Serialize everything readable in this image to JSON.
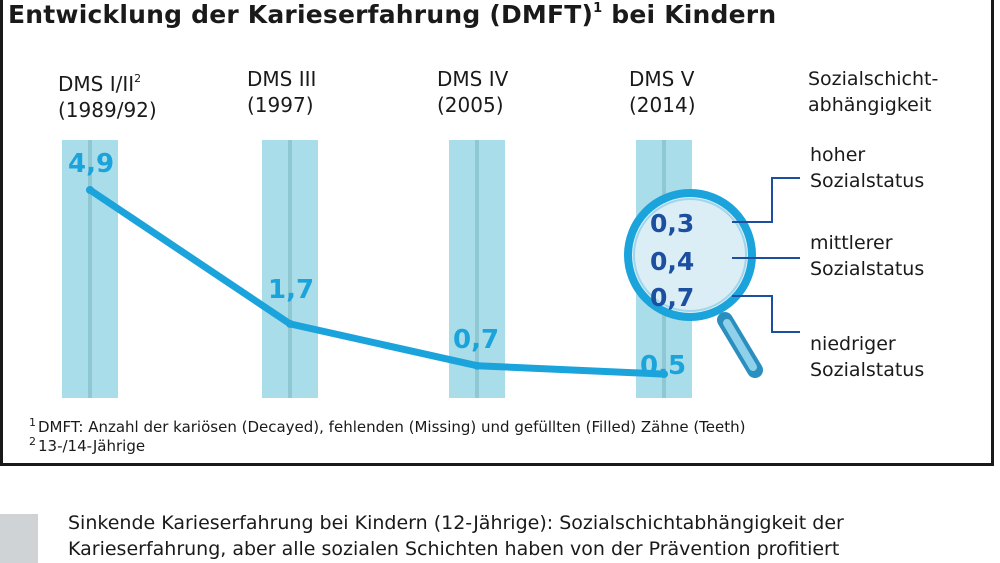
{
  "title": {
    "text": "Entwicklung der Karieserfahrung (DMFT)",
    "sup": "1",
    "tail": " bei Kindern"
  },
  "chart_data": {
    "type": "line",
    "title": "Entwicklung der Karieserfahrung (DMFT) bei Kindern",
    "categories": [
      {
        "name": "DMS I/II",
        "sup": "2",
        "year": "(1989/92)"
      },
      {
        "name": "DMS III",
        "sup": "",
        "year": "(1997)"
      },
      {
        "name": "DMS IV",
        "sup": "",
        "year": "(2005)"
      },
      {
        "name": "DMS V",
        "sup": "",
        "year": "(2014)"
      }
    ],
    "values": [
      4.9,
      1.7,
      0.7,
      0.5
    ],
    "value_labels": [
      "4,9",
      "1,7",
      "0,7",
      "0,5"
    ],
    "ylim": [
      0,
      5.5
    ],
    "grid": false,
    "breakdown": {
      "heading": [
        "Sozialschicht-",
        "abhängigkeit"
      ],
      "items": [
        {
          "label": [
            "hoher",
            "Sozialstatus"
          ],
          "value": 0.3,
          "value_label": "0,3"
        },
        {
          "label": [
            "mittlerer",
            "Sozialstatus"
          ],
          "value": 0.4,
          "value_label": "0,4"
        },
        {
          "label": [
            "niedriger",
            "Sozialstatus"
          ],
          "value": 0.7,
          "value_label": "0,7"
        }
      ]
    }
  },
  "footnotes": [
    {
      "mark": "1",
      "text": "DMFT: Anzahl der kariösen (Decayed), fehlenden (Missing) und gefüllten (Filled) Zähne (Teeth)"
    },
    {
      "mark": "2",
      "text": "13-/14-Jährige"
    }
  ],
  "caption": [
    "Sinkende Karieserfahrung bei Kindern (12-Jährige): Sozialschichtabhängigkeit der",
    "Karieserfahrung, aber alle sozialen Schichten haben von der Prävention profitiert"
  ],
  "colors": {
    "line": "#1ba3dc",
    "column": "#a8dde9",
    "column_stripe": "#8fc7d3",
    "breakdown_value": "#1c4fa0",
    "connector": "#1c4fa0",
    "magnifier_ring": "#1ba3dc",
    "magnifier_glass": "#dbeef6",
    "caption_swatch": "#d0d3d6"
  }
}
